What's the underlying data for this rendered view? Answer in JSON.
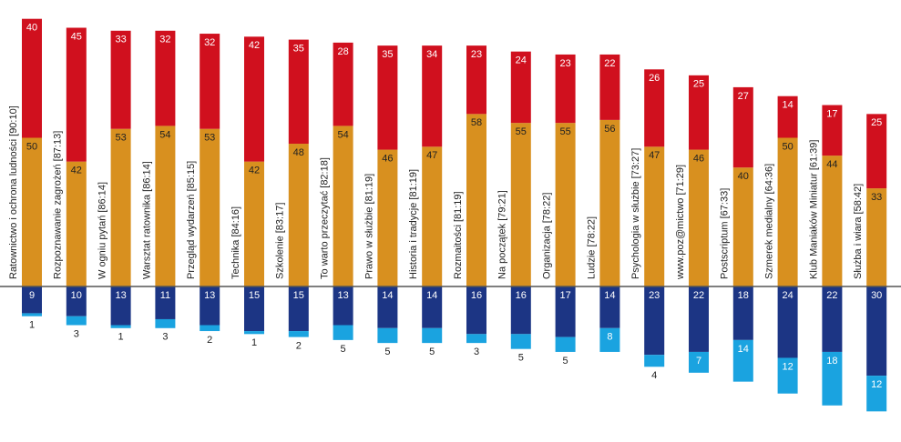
{
  "chart_data": {
    "type": "diverging-stacked-bar",
    "categories": [
      "Ratownictwo i ochrona ludności [90:10]",
      "Rozpoznawanie zagrożeń [87:13]",
      "W ogniu pytań [86:14]",
      "Warsztat ratownika [86:14]",
      "Przegląd wydarzeń [85:15]",
      "Technika [84:16]",
      "Szkolenie [83:17]",
      "To warto przeczytać [82:18]",
      "Prawo w służbie [81:19]",
      "Historia i tradycje [81:19]",
      "Rozmaitości [81:19]",
      "Na początek [79:21]",
      "Organizacja [78:22]",
      "Ludzie [78:22]",
      "Psychologia w służbie [73:27]",
      "www.poz@mictwo [71:29]",
      "Postscriptum [67:33]",
      "Szmerek medialny [64:36]",
      "Klub Maniaków Miniatur [61:39]",
      "Służba i wiara [58:42]"
    ],
    "series": [
      {
        "color": "#d8901f",
        "stack": "up",
        "values": [
          50,
          42,
          53,
          54,
          53,
          42,
          48,
          54,
          46,
          47,
          58,
          55,
          55,
          56,
          47,
          46,
          40,
          50,
          44,
          33
        ]
      },
      {
        "color": "#d0101e",
        "stack": "up",
        "values": [
          40,
          45,
          33,
          32,
          32,
          42,
          35,
          28,
          35,
          34,
          23,
          24,
          23,
          22,
          26,
          25,
          27,
          14,
          17,
          25
        ]
      },
      {
        "color": "#1c3584",
        "stack": "down",
        "values": [
          9,
          10,
          13,
          11,
          13,
          15,
          15,
          13,
          14,
          14,
          16,
          16,
          17,
          14,
          23,
          22,
          18,
          24,
          22,
          30
        ]
      },
      {
        "color": "#1aa3e0",
        "stack": "down",
        "values": [
          1,
          3,
          1,
          3,
          2,
          1,
          2,
          5,
          5,
          5,
          3,
          5,
          5,
          8,
          4,
          7,
          14,
          12,
          18,
          12
        ]
      }
    ]
  }
}
